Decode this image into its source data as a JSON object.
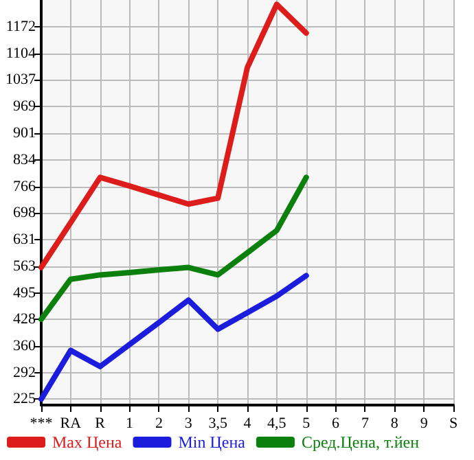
{
  "chart_data": {
    "type": "line",
    "categories": [
      "***",
      "RA",
      "R",
      "1",
      "2",
      "3",
      "3,5",
      "4",
      "4,5",
      "5",
      "6",
      "7",
      "8",
      "9",
      "S"
    ],
    "series": [
      {
        "name": "Max Цена",
        "color": "#dd1c1c",
        "values": [
          560,
          674,
          789,
          767,
          744,
          721,
          736,
          1068,
          1229,
          1156,
          null,
          null,
          null,
          null,
          null
        ]
      },
      {
        "name": "Min Цена",
        "color": "#1c1cdd",
        "values": [
          225,
          349,
          308,
          364,
          420,
          477,
          403,
          445,
          487,
          539,
          null,
          null,
          null,
          null,
          null
        ]
      },
      {
        "name": "Сред.Цена, т.йен",
        "color": "#0c800c",
        "values": [
          428,
          530,
          541,
          547,
          554,
          560,
          541,
          597,
          654,
          789,
          null,
          null,
          null,
          null,
          null
        ]
      }
    ],
    "ylim": [
      210,
      1240
    ],
    "yticks": [
      225,
      292,
      360,
      428,
      495,
      563,
      631,
      698,
      766,
      834,
      901,
      969,
      1037,
      1104,
      1172
    ],
    "grid": true,
    "legend": "bottom",
    "marker": "none",
    "line_style": "solid"
  }
}
